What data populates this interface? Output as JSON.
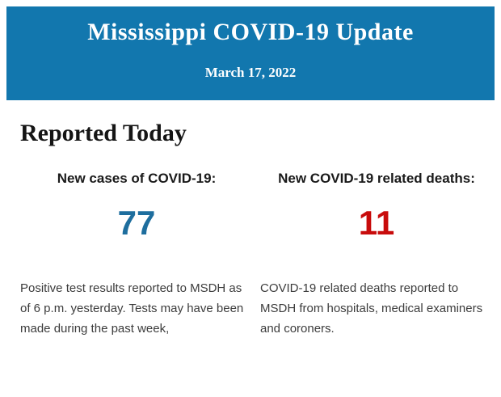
{
  "header": {
    "title": "Mississippi COVID-19 Update",
    "date": "March 17, 2022",
    "background_color": "#1277ae",
    "text_color": "#ffffff"
  },
  "main": {
    "section_heading": "Reported Today",
    "stats": {
      "cases": {
        "label": "New cases of COVID-19:",
        "value": "77",
        "value_color": "#1e6e9e",
        "description": "Positive test results reported to MSDH as of 6 p.m. yesterday. Tests may have been made during the past week,"
      },
      "deaths": {
        "label": "New COVID-19 related deaths:",
        "value": "11",
        "value_color": "#c80c0c",
        "description": "COVID-19 related deaths reported to MSDH from hospitals, medical examiners and coroners."
      }
    }
  }
}
